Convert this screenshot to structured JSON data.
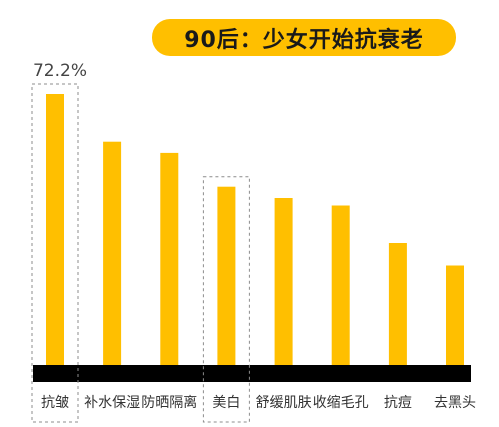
{
  "title": "90后：少女开始抗衰老",
  "colors": {
    "bar": "#FFBF00",
    "title_bg": "#FFBF00",
    "baseline": "#000000",
    "highlight_box": "#8c8c8c",
    "text": "#333333"
  },
  "chart_data": {
    "type": "bar",
    "title": "90后：少女开始抗衰老",
    "categories": [
      "抗皱",
      "补水保湿",
      "防晒隔离",
      "美白",
      "舒缓肌肤",
      "收缩毛孔",
      "抗痘",
      "去黑头"
    ],
    "values": [
      72.2,
      59.5,
      56.5,
      47.5,
      44.5,
      42.5,
      32.5,
      26.5
    ],
    "data_labels": [
      {
        "index": 0,
        "text": "72.2%"
      }
    ],
    "highlighted_categories": [
      "抗皱",
      "美白"
    ],
    "ylim": [
      0,
      75
    ],
    "grid": false,
    "legend": "none"
  }
}
